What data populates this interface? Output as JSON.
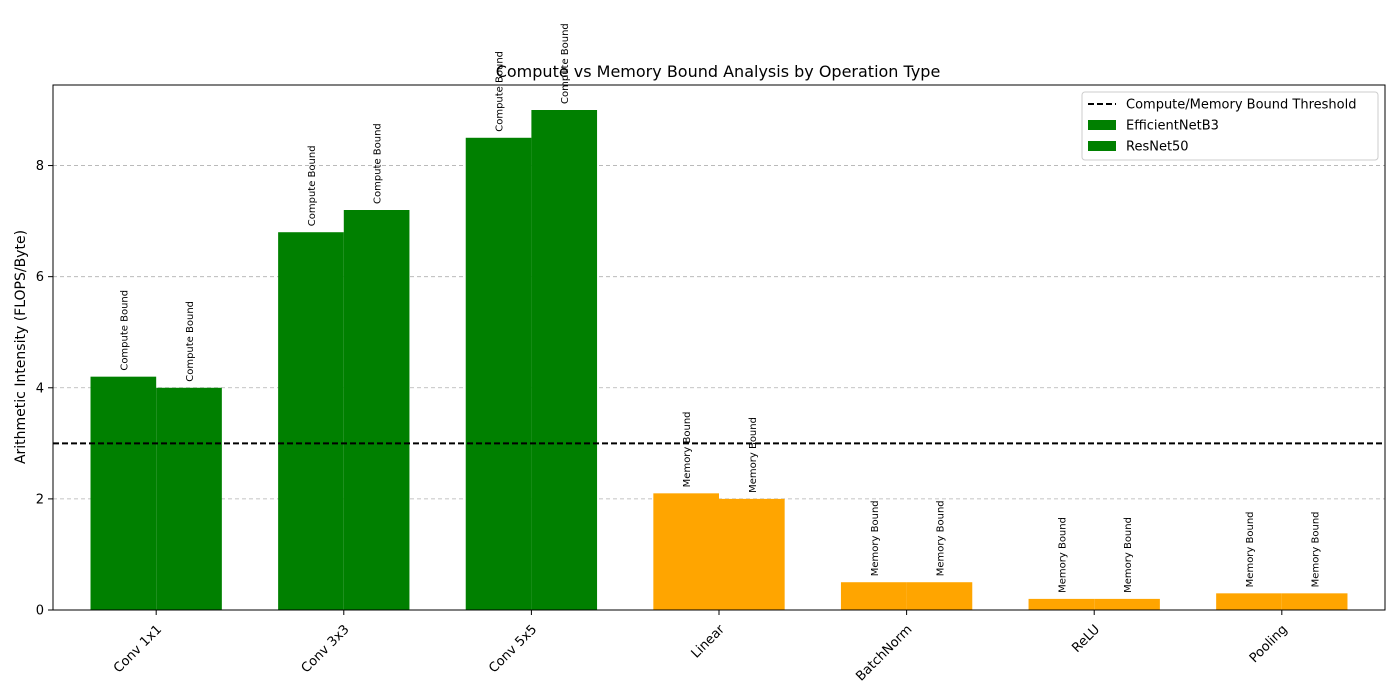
{
  "chart_data": {
    "type": "bar",
    "title": "Compute vs Memory Bound Analysis by Operation Type",
    "xlabel": "",
    "ylabel": "Arithmetic Intensity (FLOPS/Byte)",
    "ylim": [
      0,
      9.45
    ],
    "yticks": [
      0,
      2,
      4,
      6,
      8
    ],
    "grid": "y, dashed",
    "legend_position": "top-right",
    "categories": [
      "Conv 1x1",
      "Conv 3x3",
      "Conv 5x5",
      "Linear",
      "BatchNorm",
      "ReLU",
      "Pooling"
    ],
    "series": [
      {
        "name": "EfficientNetB3",
        "values": [
          4.2,
          6.8,
          8.5,
          2.1,
          0.5,
          0.2,
          0.3
        ]
      },
      {
        "name": "ResNet50",
        "values": [
          4.0,
          7.2,
          9.0,
          2.0,
          0.5,
          0.2,
          0.3
        ]
      }
    ],
    "bar_labels": [
      [
        "Compute Bound",
        "Compute Bound",
        "Compute Bound",
        "Memory Bound",
        "Memory Bound",
        "Memory Bound",
        "Memory Bound"
      ],
      [
        "Compute Bound",
        "Compute Bound",
        "Compute Bound",
        "Memory Bound",
        "Memory Bound",
        "Memory Bound",
        "Memory Bound"
      ]
    ],
    "threshold": {
      "value": 3,
      "label": "Compute/Memory Bound Threshold"
    },
    "colors": {
      "compute": "#008000",
      "memory": "#ffa500",
      "threshold": "#000000",
      "grid": "#b0b0b0"
    }
  }
}
